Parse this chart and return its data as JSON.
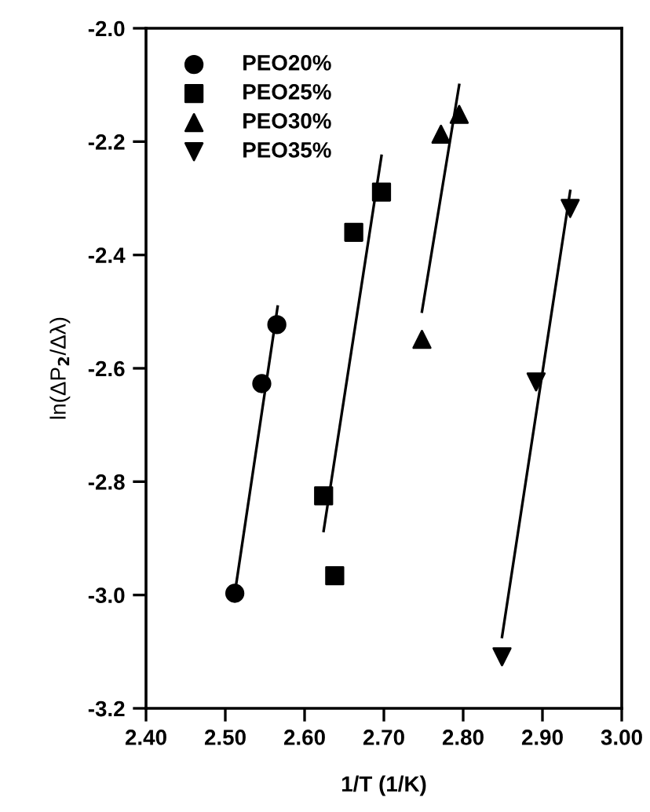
{
  "chart_data": {
    "type": "scatter",
    "xlabel": "1/T (1/K)",
    "ylabel": "ln(ΔP$_{2}$/Δλ)",
    "xlim": [
      2.4,
      3.0
    ],
    "ylim": [
      -3.2,
      -2.0
    ],
    "xticks": [
      {
        "value": 2.4,
        "label": "2.40"
      },
      {
        "value": 2.5,
        "label": "2.50"
      },
      {
        "value": 2.6,
        "label": "2.60"
      },
      {
        "value": 2.7,
        "label": "2.70"
      },
      {
        "value": 2.8,
        "label": "2.80"
      },
      {
        "value": 2.9,
        "label": "2.90"
      },
      {
        "value": 3.0,
        "label": "3.00"
      }
    ],
    "yticks": [
      {
        "value": -3.2,
        "label": "-3.2"
      },
      {
        "value": -3.0,
        "label": "-3.0"
      },
      {
        "value": -2.8,
        "label": "-2.8"
      },
      {
        "value": -2.6,
        "label": "-2.6"
      },
      {
        "value": -2.4,
        "label": "-2.4"
      },
      {
        "value": -2.2,
        "label": "-2.2"
      },
      {
        "value": -2.0,
        "label": "-2.0"
      }
    ],
    "legend": "top left",
    "grid": false,
    "series": [
      {
        "name": "PEO20%",
        "color": "#000000",
        "marker": "circle",
        "x": [
          2.512,
          2.546,
          2.565
        ],
        "values": [
          -2.997,
          -2.627,
          -2.523
        ]
      },
      {
        "name": "PEO25%",
        "color": "#000000",
        "marker": "square",
        "x": [
          2.624,
          2.638,
          2.662,
          2.697
        ],
        "values": [
          -2.825,
          -2.966,
          -2.36,
          -2.289
        ]
      },
      {
        "name": "PEO30%",
        "color": "#000000",
        "marker": "triangle",
        "x": [
          2.748,
          2.772,
          2.795
        ],
        "values": [
          -2.549,
          -2.187,
          -2.152
        ]
      },
      {
        "name": "PEO35%",
        "color": "#000000",
        "marker": "triangle_down",
        "x": [
          2.849,
          2.892,
          2.935
        ],
        "values": [
          -3.109,
          -2.624,
          -2.318
        ]
      },
      {
        "type": "line",
        "color": "#000000",
        "marker": "none",
        "x": [
          2.512,
          2.566
        ],
        "values": [
          -2.997,
          -2.491
        ]
      },
      {
        "type": "line",
        "color": "#000000",
        "marker": "none",
        "x": [
          2.624,
          2.697
        ],
        "values": [
          -2.887,
          -2.225
        ]
      },
      {
        "type": "line",
        "color": "#000000",
        "marker": "none",
        "x": [
          2.748,
          2.795
        ],
        "values": [
          -2.5,
          -2.1
        ]
      },
      {
        "type": "line",
        "color": "#000000",
        "marker": "none",
        "x": [
          2.849,
          2.935
        ],
        "values": [
          -3.074,
          -2.287
        ]
      }
    ]
  }
}
